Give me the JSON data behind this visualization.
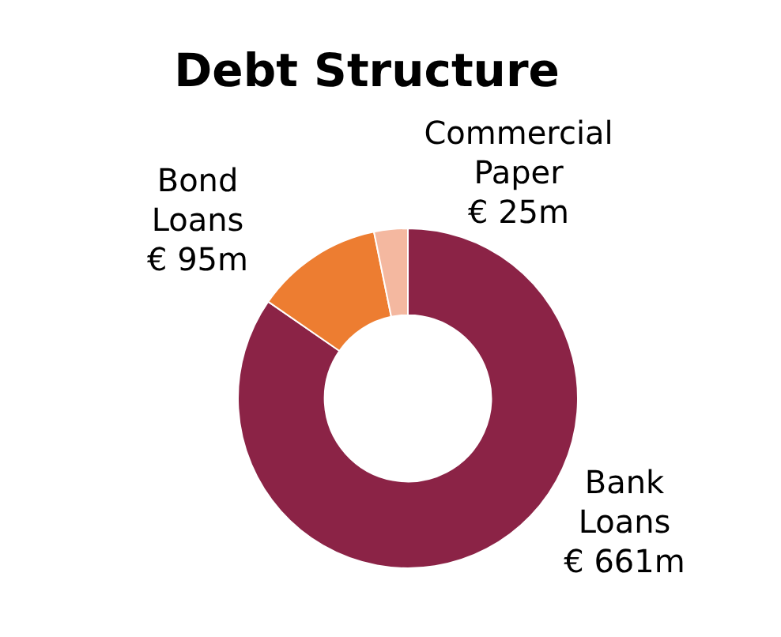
{
  "chart_data": {
    "type": "donut",
    "title": "Debt Structure",
    "categories": [
      "Bank Loans",
      "Bond Loans",
      "Commercial Paper"
    ],
    "values": [
      661,
      95,
      25
    ],
    "colors": [
      "#8b2346",
      "#ed7d31",
      "#f4b8a0"
    ],
    "value_labels": [
      "€ 661m",
      "€ 95m",
      "€ 25m"
    ],
    "legend": false
  }
}
